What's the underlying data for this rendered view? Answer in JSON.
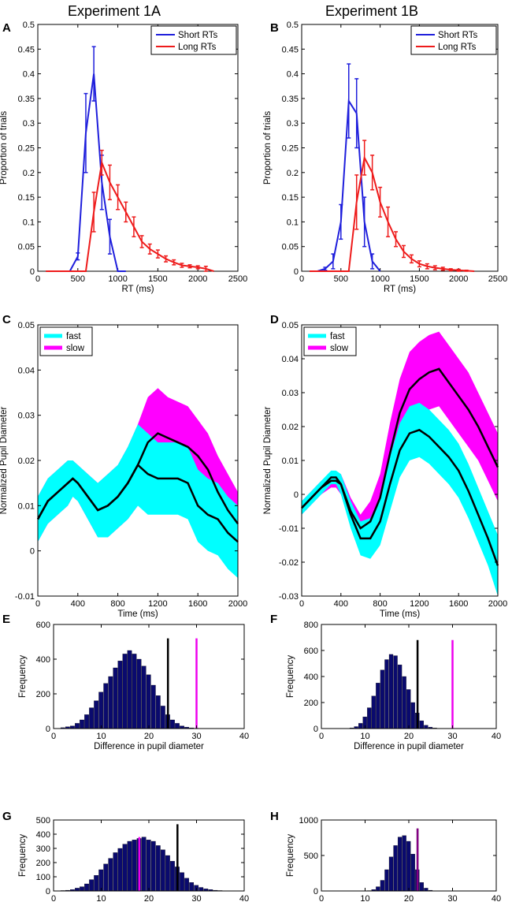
{
  "figure": {
    "titles": [
      "Experiment 1A",
      "Experiment 1B"
    ],
    "panel_letters": [
      "A",
      "B",
      "C",
      "D",
      "E",
      "F",
      "G",
      "H"
    ]
  },
  "colors": {
    "short": "#1f1fdc",
    "long": "#ee1b1b",
    "fast": "#00ffff",
    "slow": "#ff00ff",
    "mean": "#000000",
    "hist": "#0a0a6e",
    "black_line": "#000000",
    "magenta_line": "#ee00ee"
  },
  "chart_data": [
    {
      "id": "A",
      "type": "line",
      "xlabel": "RT (ms)",
      "ylabel": "Proportion of trials",
      "xlim": [
        0,
        2500
      ],
      "ylim": [
        0,
        0.5
      ],
      "xticks": [
        0,
        500,
        1000,
        1500,
        2000,
        2500
      ],
      "yticks": [
        0,
        0.05,
        0.1,
        0.15,
        0.2,
        0.25,
        0.3,
        0.35,
        0.4,
        0.45,
        0.5
      ],
      "ytick_labels": [
        "0",
        "0.05",
        "0.1",
        "0.15",
        "0.2",
        "0.25",
        "0.3",
        "0.35",
        "0.4",
        "0.45",
        "0.5"
      ],
      "legend": [
        "Short RTs",
        "Long RTs"
      ],
      "series": [
        {
          "name": "Short RTs",
          "color_key": "short",
          "x": [
            400,
            500,
            600,
            700,
            800,
            900,
            1000,
            1100
          ],
          "y": [
            0.0,
            0.03,
            0.28,
            0.4,
            0.18,
            0.07,
            0.0,
            0.0
          ],
          "err": [
            0.0,
            0.007,
            0.08,
            0.055,
            0.055,
            0.035,
            0.0,
            0.0
          ]
        },
        {
          "name": "Long RTs",
          "color_key": "long",
          "x": [
            100,
            600,
            700,
            800,
            900,
            1000,
            1100,
            1200,
            1300,
            1400,
            1500,
            1600,
            1700,
            1800,
            1900,
            2000,
            2100,
            2200
          ],
          "y": [
            0.0,
            0.0,
            0.12,
            0.22,
            0.18,
            0.15,
            0.12,
            0.09,
            0.06,
            0.045,
            0.035,
            0.025,
            0.018,
            0.012,
            0.01,
            0.008,
            0.005,
            0.0
          ],
          "err": [
            0.0,
            0.0,
            0.04,
            0.025,
            0.035,
            0.025,
            0.02,
            0.02,
            0.012,
            0.01,
            0.008,
            0.006,
            0.005,
            0.004,
            0.003,
            0.003,
            0.005,
            0.0
          ]
        }
      ]
    },
    {
      "id": "B",
      "type": "line",
      "xlabel": "RT (ms)",
      "ylabel": "Proportion of trials",
      "xlim": [
        0,
        2500
      ],
      "ylim": [
        0,
        0.5
      ],
      "xticks": [
        0,
        500,
        1000,
        1500,
        2000,
        2500
      ],
      "yticks": [
        0,
        0.05,
        0.1,
        0.15,
        0.2,
        0.25,
        0.3,
        0.35,
        0.4,
        0.45,
        0.5
      ],
      "ytick_labels": [
        "0",
        "0.05",
        "0.1",
        "0.15",
        "0.2",
        "0.25",
        "0.3",
        "0.35",
        "0.4",
        "0.45",
        "0.5"
      ],
      "legend": [
        "Short RTs",
        "Long RTs"
      ],
      "series": [
        {
          "name": "Short RTs",
          "color_key": "short",
          "x": [
            100,
            200,
            300,
            400,
            500,
            600,
            700,
            800,
            900,
            1000
          ],
          "y": [
            0.0,
            0.0,
            0.005,
            0.02,
            0.1,
            0.345,
            0.32,
            0.1,
            0.02,
            0.0
          ],
          "err": [
            0.0,
            0.0,
            0.003,
            0.015,
            0.035,
            0.075,
            0.07,
            0.05,
            0.015,
            0.0
          ]
        },
        {
          "name": "Long RTs",
          "color_key": "long",
          "x": [
            100,
            600,
            700,
            800,
            900,
            1000,
            1100,
            1200,
            1300,
            1400,
            1500,
            1600,
            1700,
            1800,
            1900,
            2000,
            2100,
            2200
          ],
          "y": [
            0.0,
            0.0,
            0.14,
            0.23,
            0.2,
            0.14,
            0.1,
            0.065,
            0.04,
            0.025,
            0.015,
            0.01,
            0.007,
            0.005,
            0.003,
            0.002,
            0.001,
            0.0
          ],
          "err": [
            0.0,
            0.0,
            0.055,
            0.035,
            0.035,
            0.03,
            0.03,
            0.015,
            0.012,
            0.008,
            0.006,
            0.005,
            0.004,
            0.003,
            0.002,
            0.002,
            0.001,
            0.0
          ]
        }
      ]
    },
    {
      "id": "C",
      "type": "area",
      "xlabel": "Time (ms)",
      "ylabel": "Normalized Pupil Diameter",
      "xlim": [
        0,
        2000
      ],
      "ylim": [
        -0.01,
        0.05
      ],
      "xticks": [
        0,
        400,
        800,
        1200,
        1600,
        2000
      ],
      "yticks": [
        -0.01,
        0,
        0.01,
        0.02,
        0.03,
        0.04,
        0.05
      ],
      "ytick_labels": [
        "-0.01",
        "0",
        "0.01",
        "0.02",
        "0.03",
        "0.04",
        "0.05"
      ],
      "legend": [
        "fast",
        "slow"
      ],
      "series": [
        {
          "name": "fast",
          "color_key": "fast",
          "x": [
            0,
            100,
            200,
            300,
            350,
            400,
            500,
            600,
            700,
            800,
            900,
            1000,
            1100,
            1200,
            1300,
            1400,
            1500,
            1600,
            1700,
            1800,
            1900,
            2000
          ],
          "y": [
            0.007,
            0.011,
            0.013,
            0.015,
            0.016,
            0.015,
            0.012,
            0.009,
            0.01,
            0.012,
            0.015,
            0.019,
            0.017,
            0.016,
            0.016,
            0.016,
            0.015,
            0.01,
            0.008,
            0.007,
            0.004,
            0.002
          ],
          "err": [
            0.005,
            0.005,
            0.005,
            0.005,
            0.004,
            0.004,
            0.005,
            0.006,
            0.007,
            0.007,
            0.008,
            0.009,
            0.009,
            0.008,
            0.008,
            0.008,
            0.008,
            0.008,
            0.008,
            0.008,
            0.008,
            0.008
          ]
        },
        {
          "name": "slow",
          "color_key": "slow",
          "x": [
            0,
            100,
            200,
            300,
            350,
            400,
            500,
            600,
            700,
            800,
            900,
            1000,
            1100,
            1200,
            1300,
            1400,
            1500,
            1600,
            1700,
            1800,
            1900,
            2000
          ],
          "y": [
            0.007,
            0.011,
            0.013,
            0.015,
            0.016,
            0.015,
            0.012,
            0.009,
            0.01,
            0.012,
            0.015,
            0.019,
            0.024,
            0.026,
            0.025,
            0.024,
            0.023,
            0.021,
            0.018,
            0.013,
            0.009,
            0.006
          ],
          "err": [
            0.005,
            0.005,
            0.005,
            0.005,
            0.004,
            0.004,
            0.005,
            0.006,
            0.007,
            0.007,
            0.008,
            0.009,
            0.01,
            0.01,
            0.009,
            0.009,
            0.009,
            0.008,
            0.008,
            0.008,
            0.008,
            0.007
          ]
        }
      ]
    },
    {
      "id": "D",
      "type": "area",
      "xlabel": "Time (ms)",
      "ylabel": "Normalized Pupil Diameter",
      "xlim": [
        0,
        2000
      ],
      "ylim": [
        -0.03,
        0.05
      ],
      "xticks": [
        0,
        400,
        800,
        1200,
        1600,
        2000
      ],
      "yticks": [
        -0.03,
        -0.02,
        -0.01,
        0,
        0.01,
        0.02,
        0.03,
        0.04,
        0.05
      ],
      "ytick_labels": [
        "-0.03",
        "-0.02",
        "-0.01",
        "0",
        "0.01",
        "0.02",
        "0.03",
        "0.04",
        "0.05"
      ],
      "legend": [
        "fast",
        "slow"
      ],
      "series": [
        {
          "name": "fast",
          "color_key": "fast",
          "x": [
            0,
            100,
            200,
            300,
            350,
            400,
            500,
            600,
            700,
            800,
            900,
            1000,
            1100,
            1200,
            1300,
            1400,
            1500,
            1600,
            1700,
            1800,
            1900,
            2000
          ],
          "y": [
            -0.004,
            -0.001,
            0.002,
            0.005,
            0.005,
            0.003,
            -0.006,
            -0.013,
            -0.013,
            -0.008,
            0.003,
            0.013,
            0.018,
            0.019,
            0.017,
            0.014,
            0.011,
            0.007,
            0.001,
            -0.006,
            -0.013,
            -0.021
          ],
          "err": [
            0.002,
            0.002,
            0.002,
            0.002,
            0.002,
            0.003,
            0.004,
            0.005,
            0.006,
            0.007,
            0.008,
            0.008,
            0.008,
            0.008,
            0.008,
            0.008,
            0.008,
            0.008,
            0.008,
            0.008,
            0.008,
            0.009
          ]
        },
        {
          "name": "slow",
          "color_key": "slow",
          "x": [
            0,
            100,
            200,
            300,
            350,
            400,
            500,
            600,
            700,
            800,
            900,
            1000,
            1100,
            1200,
            1300,
            1400,
            1500,
            1600,
            1700,
            1800,
            1900,
            2000
          ],
          "y": [
            -0.004,
            -0.001,
            0.002,
            0.004,
            0.004,
            0.003,
            -0.005,
            -0.01,
            -0.008,
            -0.001,
            0.012,
            0.024,
            0.031,
            0.034,
            0.036,
            0.037,
            0.033,
            0.029,
            0.025,
            0.02,
            0.014,
            0.008
          ],
          "err": [
            0.002,
            0.002,
            0.002,
            0.002,
            0.002,
            0.003,
            0.004,
            0.004,
            0.006,
            0.007,
            0.009,
            0.01,
            0.011,
            0.011,
            0.011,
            0.011,
            0.011,
            0.011,
            0.011,
            0.01,
            0.01,
            0.01
          ]
        }
      ]
    },
    {
      "id": "E",
      "type": "bar",
      "xlabel": "Difference in pupil diameter",
      "ylabel": "Frequency",
      "xlim": [
        0,
        40
      ],
      "ylim": [
        0,
        600
      ],
      "xticks": [
        0,
        10,
        20,
        30,
        40
      ],
      "yticks": [
        0,
        200,
        400,
        600
      ],
      "bin_start": 0.5,
      "bin_width": 1,
      "counts": [
        0,
        5,
        10,
        15,
        30,
        50,
        80,
        120,
        160,
        210,
        260,
        300,
        350,
        390,
        430,
        450,
        430,
        400,
        360,
        310,
        250,
        190,
        130,
        80,
        50,
        30,
        15,
        8,
        4,
        2,
        1
      ],
      "markers": [
        {
          "x": 24,
          "height": 520,
          "color_key": "black_line"
        },
        {
          "x": 30,
          "height": 520,
          "color_key": "magenta_line"
        }
      ]
    },
    {
      "id": "F",
      "type": "bar",
      "xlabel": "Difference in pupil diameter",
      "ylabel": "Frequency",
      "xlim": [
        0,
        40
      ],
      "ylim": [
        0,
        800
      ],
      "xticks": [
        0,
        10,
        20,
        30,
        40
      ],
      "yticks": [
        0,
        200,
        400,
        600,
        800
      ],
      "bin_start": 4.5,
      "bin_width": 1,
      "counts": [
        0,
        2,
        5,
        15,
        40,
        90,
        160,
        250,
        350,
        450,
        530,
        570,
        560,
        490,
        400,
        300,
        200,
        120,
        60,
        25,
        10,
        4
      ],
      "markers": [
        {
          "x": 22,
          "height": 680,
          "color_key": "black_line"
        },
        {
          "x": 30,
          "height": 680,
          "color_key": "magenta_line"
        }
      ]
    },
    {
      "id": "G",
      "type": "bar",
      "xlabel": "Difference in pupil diameter",
      "ylabel": "Frequency",
      "xlim": [
        0,
        40
      ],
      "ylim": [
        0,
        500
      ],
      "xticks": [
        0,
        10,
        20,
        30,
        40
      ],
      "yticks": [
        0,
        100,
        200,
        300,
        400,
        500
      ],
      "bin_start": 1.5,
      "bin_width": 1,
      "counts": [
        3,
        5,
        10,
        20,
        30,
        50,
        80,
        110,
        150,
        190,
        230,
        270,
        300,
        330,
        350,
        360,
        370,
        380,
        360,
        350,
        320,
        290,
        250,
        210,
        170,
        130,
        90,
        60,
        40,
        25,
        15,
        10,
        5,
        3
      ],
      "markers": [
        {
          "x": 18,
          "height": 380,
          "color_key": "magenta_line"
        },
        {
          "x": 26,
          "height": 470,
          "color_key": "black_line"
        }
      ]
    },
    {
      "id": "H",
      "type": "bar",
      "xlabel": "Difference in pupil diameter",
      "ylabel": "Frequency",
      "xlim": [
        0,
        40
      ],
      "ylim": [
        0,
        1000
      ],
      "xticks": [
        0,
        10,
        20,
        30,
        40
      ],
      "yticks": [
        0,
        500,
        1000
      ],
      "bin_start": 8.5,
      "bin_width": 1,
      "counts": [
        0,
        2,
        5,
        20,
        60,
        150,
        300,
        480,
        640,
        760,
        780,
        700,
        520,
        300,
        120,
        40,
        10
      ],
      "markers": [
        {
          "x": 22,
          "height": 880,
          "color_key": "black_line"
        },
        {
          "x": 22,
          "height": 880,
          "color_key": "magenta_line"
        }
      ]
    }
  ]
}
